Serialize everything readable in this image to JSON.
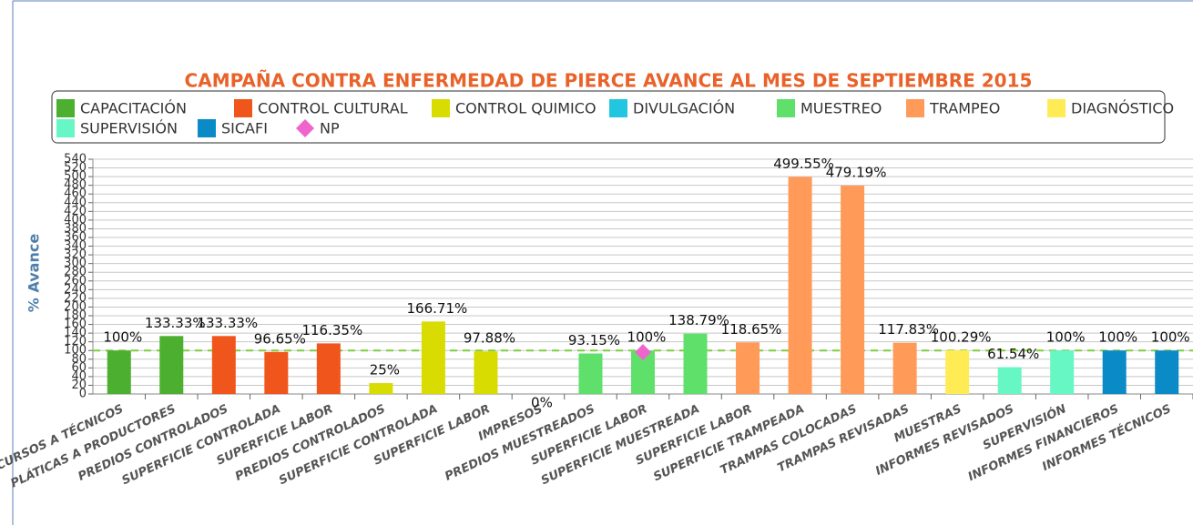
{
  "chart_data": {
    "type": "bar",
    "title": "CAMPAÑA CONTRA ENFERMEDAD DE PIERCE AVANCE AL MES DE SEPTIEMBRE 2015",
    "ylabel": "% Avance",
    "categories": [
      "CURSOS A TÉCNICOS",
      "PLÁTICAS A PRODUCTORES",
      "PREDIOS CONTROLADOS",
      "SUPERFICIE CONTROLADA",
      "SUPERFICIE LABOR",
      "PREDIOS CONTROLADOS",
      "SUPERFICIE CONTROLADA",
      "SUPERFICIE LABOR",
      "IMPRESOS",
      "PREDIOS MUESTREADOS",
      "SUPERFICIE LABOR",
      "SUPERFICIE MUESTREADA",
      "SUPERFICIE LABOR",
      "SUPERFICIE TRAMPEADA",
      "TRAMPAS COLOCADAS",
      "TRAMPAS REVISADAS",
      "MUESTRAS",
      "INFORMES REVISADOS",
      "SUPERVISIÓN",
      "INFORMES FINANCIEROS",
      "INFORMES TÉCNICOS"
    ],
    "series": [
      {
        "name": "CAPACITACIÓN",
        "color": "#4caf2f",
        "values": [
          100,
          133.33,
          null,
          null,
          null,
          null,
          null,
          null,
          null,
          null,
          null,
          null,
          null,
          null,
          null,
          null,
          null,
          null,
          null,
          null,
          null
        ],
        "value_labels": [
          "100%",
          "133.33%",
          null,
          null,
          null,
          null,
          null,
          null,
          null,
          null,
          null,
          null,
          null,
          null,
          null,
          null,
          null,
          null,
          null,
          null,
          null
        ]
      },
      {
        "name": "CONTROL CULTURAL",
        "color": "#f0561c",
        "values": [
          null,
          null,
          133.33,
          96.65,
          116.35,
          null,
          null,
          null,
          null,
          null,
          null,
          null,
          null,
          null,
          null,
          null,
          null,
          null,
          null,
          null,
          null
        ],
        "value_labels": [
          null,
          null,
          "133.33%",
          "96.65%",
          "116.35%",
          null,
          null,
          null,
          null,
          null,
          null,
          null,
          null,
          null,
          null,
          null,
          null,
          null,
          null,
          null,
          null
        ]
      },
      {
        "name": "CONTROL QUIMICO",
        "color": "#d8dc00",
        "values": [
          null,
          null,
          null,
          null,
          null,
          25,
          166.71,
          97.88,
          null,
          null,
          null,
          null,
          null,
          null,
          null,
          null,
          null,
          null,
          null,
          null,
          null
        ],
        "value_labels": [
          null,
          null,
          null,
          null,
          null,
          "25%",
          "166.71%",
          "97.88%",
          null,
          null,
          null,
          null,
          null,
          null,
          null,
          null,
          null,
          null,
          null,
          null,
          null
        ]
      },
      {
        "name": "DIVULGACIÓN",
        "color": "#22c6e0",
        "values": [
          null,
          null,
          null,
          null,
          null,
          null,
          null,
          null,
          0,
          null,
          null,
          null,
          null,
          null,
          null,
          null,
          null,
          null,
          null,
          null,
          null
        ],
        "value_labels": [
          null,
          null,
          null,
          null,
          null,
          null,
          null,
          null,
          "0%",
          null,
          null,
          null,
          null,
          null,
          null,
          null,
          null,
          null,
          null,
          null,
          null
        ]
      },
      {
        "name": "MUESTREO",
        "color": "#5ee06a",
        "values": [
          null,
          null,
          null,
          null,
          null,
          null,
          null,
          null,
          null,
          93.15,
          100,
          138.79,
          null,
          null,
          null,
          null,
          null,
          null,
          null,
          null,
          null
        ],
        "value_labels": [
          null,
          null,
          null,
          null,
          null,
          null,
          null,
          null,
          null,
          "93.15%",
          "100%",
          "138.79%",
          null,
          null,
          null,
          null,
          null,
          null,
          null,
          null,
          null
        ]
      },
      {
        "name": "TRAMPEO",
        "color": "#ff9a58",
        "values": [
          null,
          null,
          null,
          null,
          null,
          null,
          null,
          null,
          null,
          null,
          null,
          null,
          118.65,
          499.55,
          479.19,
          117.83,
          null,
          null,
          null,
          null,
          null
        ],
        "value_labels": [
          null,
          null,
          null,
          null,
          null,
          null,
          null,
          null,
          null,
          null,
          null,
          null,
          "118.65%",
          "499.55%",
          "479.19%",
          "117.83%",
          null,
          null,
          null,
          null,
          null
        ]
      },
      {
        "name": "DIAGNÓSTICO",
        "color": "#ffec55",
        "values": [
          null,
          null,
          null,
          null,
          null,
          null,
          null,
          null,
          null,
          null,
          null,
          null,
          null,
          null,
          null,
          null,
          100.29,
          null,
          null,
          null,
          null
        ],
        "value_labels": [
          null,
          null,
          null,
          null,
          null,
          null,
          null,
          null,
          null,
          null,
          null,
          null,
          null,
          null,
          null,
          null,
          "100.29%",
          null,
          null,
          null,
          null
        ]
      },
      {
        "name": "SUPERVISIÓN",
        "color": "#66f7c4",
        "values": [
          null,
          null,
          null,
          null,
          null,
          null,
          null,
          null,
          null,
          null,
          null,
          null,
          null,
          null,
          null,
          null,
          null,
          61.54,
          100,
          null,
          null
        ],
        "value_labels": [
          null,
          null,
          null,
          null,
          null,
          null,
          null,
          null,
          null,
          null,
          null,
          null,
          null,
          null,
          null,
          null,
          null,
          "61.54%",
          "100%",
          null,
          null
        ]
      },
      {
        "name": "SICAFI",
        "color": "#0a8ac6",
        "values": [
          null,
          null,
          null,
          null,
          null,
          null,
          null,
          null,
          null,
          null,
          null,
          null,
          null,
          null,
          null,
          null,
          null,
          null,
          null,
          100,
          100
        ],
        "value_labels": [
          null,
          null,
          null,
          null,
          null,
          null,
          null,
          null,
          null,
          null,
          null,
          null,
          null,
          null,
          null,
          null,
          null,
          null,
          null,
          "100%",
          "100%"
        ]
      },
      {
        "name": "NP",
        "color": "#ee66cc",
        "marker": "diamond",
        "values": [
          null,
          null,
          null,
          null,
          null,
          null,
          null,
          null,
          null,
          null,
          96,
          null,
          null,
          null,
          null,
          null,
          null,
          null,
          null,
          null,
          null
        ]
      }
    ],
    "reference_line": 100,
    "reference_color": "#7ccf3a",
    "ylim": [
      0,
      540
    ],
    "yticks": [
      0,
      20,
      40,
      60,
      80,
      100,
      120,
      140,
      160,
      180,
      200,
      220,
      240,
      260,
      280,
      300,
      320,
      340,
      360,
      380,
      400,
      420,
      440,
      460,
      480,
      500,
      520,
      540
    ],
    "grid": true,
    "legend": "top"
  }
}
